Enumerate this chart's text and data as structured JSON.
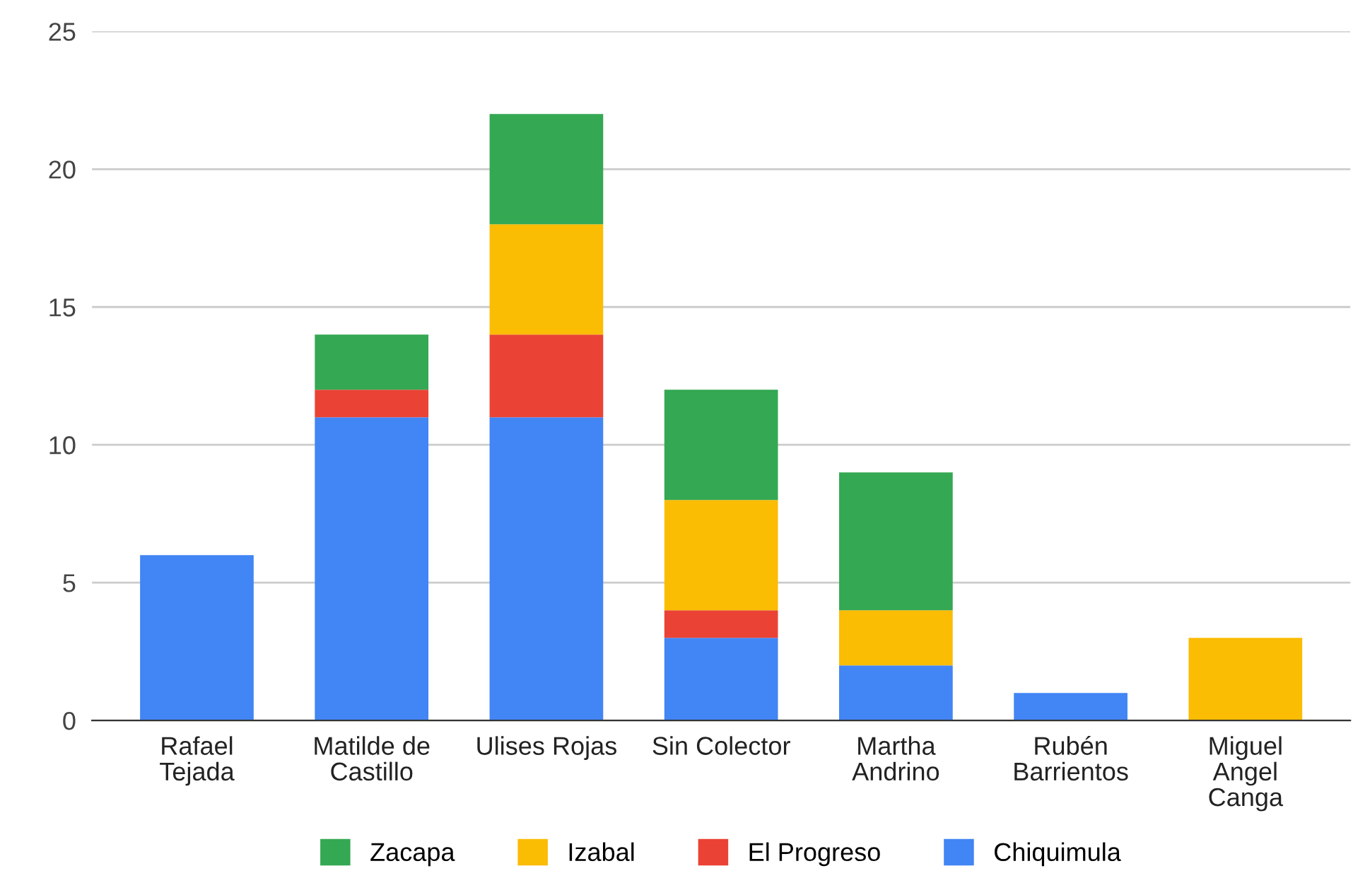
{
  "chart_data": {
    "type": "bar",
    "stacked": true,
    "categories": [
      "Rafael\nTejada",
      "Matilde de\nCastillo",
      "Ulises Rojas",
      "Sin Colector",
      "Martha\nAndrino",
      "Rubén\nBarrientos",
      "Miguel\nAngel\nCanga"
    ],
    "series": [
      {
        "name": "Chiquimula",
        "color": "#4285f4",
        "values": [
          6,
          11,
          11,
          3,
          2,
          1,
          null
        ]
      },
      {
        "name": "El Progreso",
        "color": "#ea4335",
        "values": [
          null,
          1,
          3,
          1,
          null,
          null,
          null
        ]
      },
      {
        "name": "Izabal",
        "color": "#fbbc04",
        "values": [
          null,
          null,
          4,
          4,
          2,
          null,
          3
        ]
      },
      {
        "name": "Zacapa",
        "color": "#34a853",
        "values": [
          null,
          2,
          4,
          4,
          5,
          null,
          null
        ]
      }
    ],
    "ylim": [
      0,
      25
    ],
    "yticks": [
      0,
      5,
      10,
      15,
      20,
      25
    ],
    "grid": "y",
    "legend": "bottom"
  }
}
